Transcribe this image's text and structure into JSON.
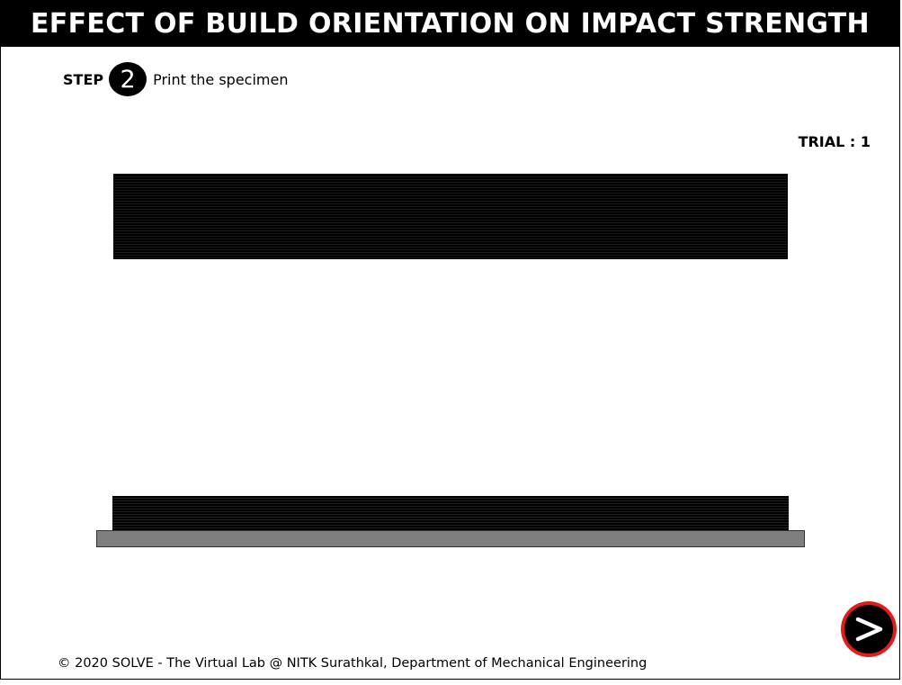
{
  "header": {
    "title": "EFFECT OF BUILD ORIENTATION ON IMPACT STRENGTH"
  },
  "step": {
    "label": "STEP",
    "number": "2",
    "description": "Print the specimen"
  },
  "trial": {
    "text": "TRIAL : 1"
  },
  "controls": {
    "next_icon": "chevron-right-icon",
    "accent_color": "#e21b1b"
  },
  "footer": {
    "text": "© 2020 SOLVE - The Virtual Lab @ NITK Surathkal, Department of Mechanical Engineering"
  }
}
